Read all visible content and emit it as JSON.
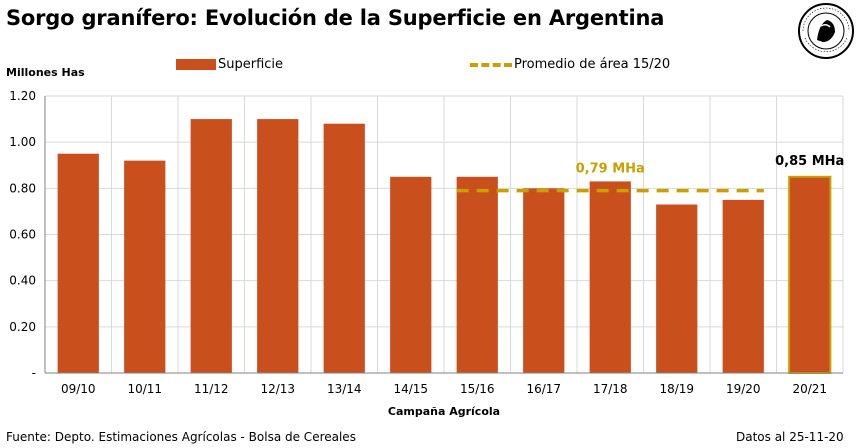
{
  "title": "Sorgo granífero: Evolución de la Superficie en Argentina",
  "logo": {
    "icon": "bolsa-cereales-seal-icon",
    "text_top": "Bolsa de Cereales",
    "text_bottom": "Buenos Aires"
  },
  "footer": {
    "source": "Fuente: Depto. Estimaciones Agrícolas - Bolsa de Cereales",
    "date": "Datos al 25-11-20"
  },
  "chart_data": {
    "type": "bar",
    "ylabel": "Millones Has",
    "xlabel": "Campaña Agrícola",
    "ylim": [
      0,
      1.2
    ],
    "yticks": [
      "-",
      "0.20",
      "0.40",
      "0.60",
      "0.80",
      "1.00",
      "1.20"
    ],
    "ytick_values": [
      0,
      0.2,
      0.4,
      0.6,
      0.8,
      1.0,
      1.2
    ],
    "grid": true,
    "categories": [
      "09/10",
      "10/11",
      "11/12",
      "12/13",
      "13/14",
      "14/15",
      "15/16",
      "16/17",
      "17/18",
      "18/19",
      "19/20",
      "20/21"
    ],
    "series": [
      {
        "name": "Superficie",
        "values": [
          0.95,
          0.92,
          1.1,
          1.1,
          1.08,
          0.85,
          0.85,
          0.8,
          0.83,
          0.73,
          0.75,
          0.85
        ],
        "color": "#c9501c",
        "highlight_index": 11,
        "highlight_border": "#c8a000"
      },
      {
        "name": "Promedio de área 15/20",
        "type": "line",
        "style": "dashed",
        "color": "#c8a000",
        "value": 0.79,
        "from_category": "15/16",
        "to_category": "19/20"
      }
    ],
    "annotations": [
      {
        "text": "0,79 MHa",
        "category": "17/18",
        "value": 0.79,
        "color": "#c8a000"
      },
      {
        "text": "0,85 MHa",
        "category": "20/21",
        "value": 0.85,
        "color": "#000000"
      }
    ],
    "legend_position": "top"
  }
}
